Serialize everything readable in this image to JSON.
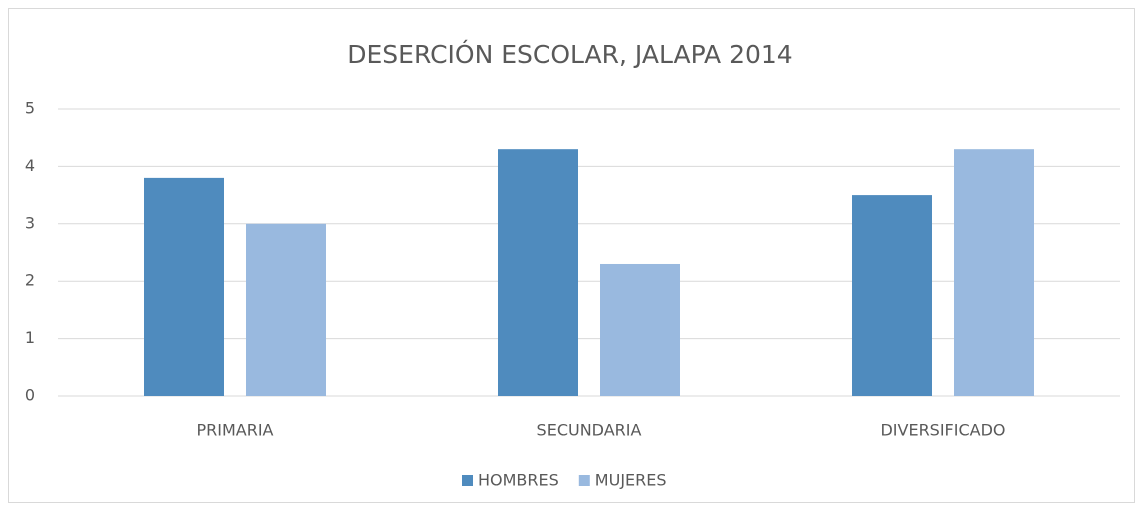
{
  "chart_data": {
    "type": "bar",
    "title": "DESERCIÓN ESCOLAR, JALAPA 2014",
    "categories": [
      "PRIMARIA",
      "SECUNDARIA",
      "DIVERSIFICADO"
    ],
    "series": [
      {
        "name": "HOMBRES",
        "color": "#4f8bbe",
        "values": [
          3.8,
          4.3,
          3.5
        ]
      },
      {
        "name": "MUJERES",
        "color": "#99b9df",
        "values": [
          3,
          2.3,
          4.3
        ]
      }
    ],
    "ylim": [
      0,
      5
    ],
    "yticks": [
      0,
      1,
      2,
      3,
      4,
      5
    ],
    "grid": true,
    "legend": "bottom"
  }
}
